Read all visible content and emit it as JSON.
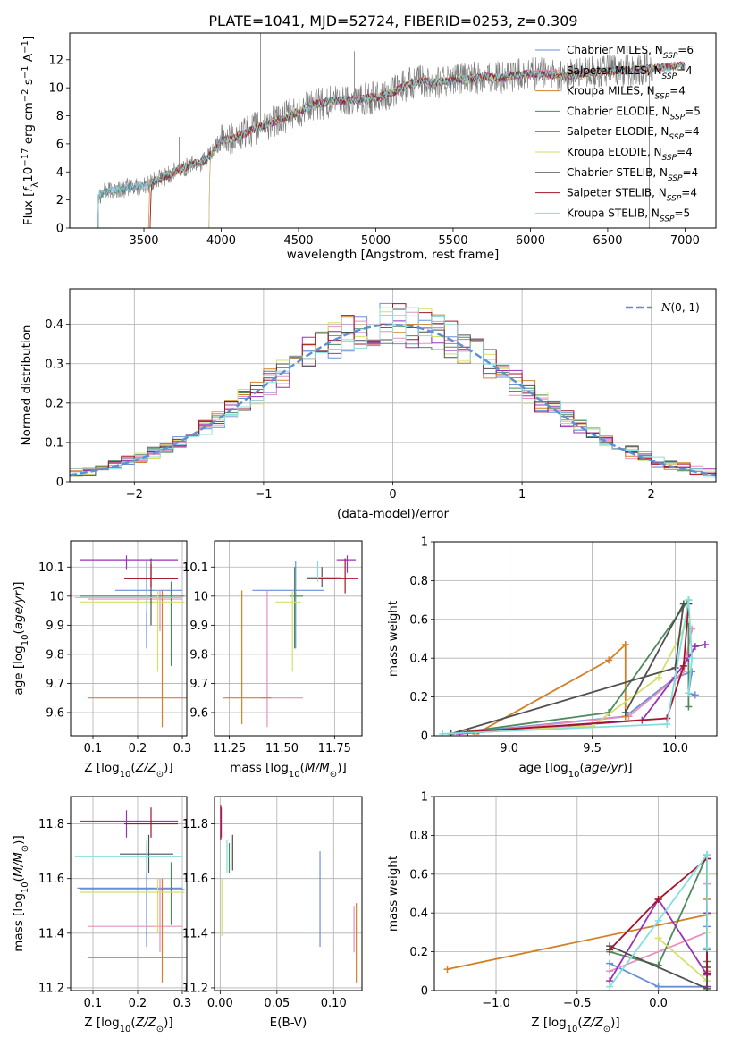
{
  "figure": {
    "title": "PLATE=1041, MJD=52724, FIBERID=0253, z=0.309"
  },
  "palette": {
    "Chabrier MILES": "#6a8fd8",
    "Salpeter MILES": "#e98fbd",
    "Kroupa MILES": "#d2812a",
    "Chabrier ELODIE": "#4e8a5e",
    "Salpeter ELODIE": "#9b32b5",
    "Kroupa ELODIE": "#d4e06a",
    "Chabrier STELIB": "#505050",
    "Salpeter STELIB": "#a5152a",
    "Kroupa STELIB": "#84dede",
    "observed": "#7a7a7a",
    "normal": "#5b8fd6"
  },
  "chart_data": [
    {
      "id": "spectrum",
      "type": "line",
      "title": "PLATE=1041, MJD=52724, FIBERID=0253, z=0.309",
      "xlabel": "wavelength [Angstrom, rest frame]",
      "ylabel": "Flux [f_λ10^-17 erg cm^-2 s^-1 A^-1]",
      "xlim": [
        3020,
        7200
      ],
      "ylim": [
        0,
        13.9
      ],
      "xticks": [
        3500,
        4000,
        4500,
        5000,
        5500,
        6000,
        6500,
        7000
      ],
      "yticks": [
        0,
        2,
        4,
        6,
        8,
        10,
        12
      ],
      "grid": false,
      "legend_position": "right",
      "legend": [
        "Chabrier MILES, N_SSP=6",
        "Salpeter MILES, N_SSP=4",
        "Kroupa MILES, N_SSP=4",
        "Chabrier ELODIE, N_SSP=5",
        "Salpeter ELODIE, N_SSP=4",
        "Kroupa ELODIE, N_SSP=4",
        "Chabrier STELIB, N_SSP=4",
        "Salpeter STELIB, N_SSP=4",
        "Kroupa STELIB, N_SSP=5"
      ],
      "legend_labels": [
        {
          "name": "Chabrier MILES",
          "n": "6"
        },
        {
          "name": "Salpeter MILES",
          "n": "4"
        },
        {
          "name": "Kroupa MILES",
          "n": "4"
        },
        {
          "name": "Chabrier ELODIE",
          "n": "5"
        },
        {
          "name": "Salpeter ELODIE",
          "n": "4"
        },
        {
          "name": "Kroupa ELODIE",
          "n": "4"
        },
        {
          "name": "Chabrier STELIB",
          "n": "4"
        },
        {
          "name": "Salpeter STELIB",
          "n": "4"
        },
        {
          "name": "Kroupa STELIB",
          "n": "5"
        }
      ],
      "continuum_x": [
        3200,
        3300,
        3400,
        3500,
        3600,
        3700,
        3800,
        3900,
        4000,
        4100,
        4200,
        4300,
        4400,
        4500,
        4600,
        4700,
        4800,
        4900,
        5000,
        5100,
        5200,
        5300,
        5400,
        5500,
        5600,
        5700,
        5800,
        5900,
        6000,
        6100,
        6200,
        6300,
        6400,
        6500,
        6600,
        6700,
        6800,
        6900,
        7000
      ],
      "continuum_y": [
        2.4,
        2.7,
        2.9,
        3.0,
        3.5,
        4.0,
        4.5,
        4.8,
        6.2,
        6.5,
        7.0,
        7.4,
        7.8,
        8.3,
        8.8,
        9.0,
        9.1,
        9.2,
        9.3,
        9.6,
        10.2,
        10.5,
        10.4,
        10.5,
        10.6,
        10.8,
        10.7,
        10.9,
        11.0,
        11.0,
        10.8,
        10.9,
        11.1,
        11.2,
        11.2,
        11.3,
        11.4,
        11.5,
        11.6
      ],
      "model_start_x": [
        3200,
        3200,
        3530,
        3200,
        3920,
        3920,
        3540,
        3540,
        3200
      ],
      "observed_end_x": 6790,
      "notable_lines_x": [
        4255,
        4862,
        3728,
        6770
      ]
    },
    {
      "id": "residuals",
      "type": "histogram",
      "xlabel": "(data-model)/error",
      "ylabel": "Normed distribution",
      "xlim": [
        -2.5,
        2.5
      ],
      "ylim": [
        0,
        0.49
      ],
      "xticks": [
        -2,
        -1,
        0,
        1,
        2
      ],
      "yticks": [
        0.0,
        0.1,
        0.2,
        0.3,
        0.4
      ],
      "grid": true,
      "legend_position": "top-right",
      "legend": [
        "N(0,1)"
      ],
      "bin_width": 0.1,
      "bin_start": -2.5
    },
    {
      "id": "age_vs_Z",
      "type": "errorbar",
      "xlabel": "Z [log10(Z/Z⊙)]",
      "ylabel": "age [log10(age/yr)]",
      "xlim": [
        0.05,
        0.31
      ],
      "ylim": [
        9.52,
        10.19
      ],
      "xticks": [
        0.1,
        0.2,
        0.3
      ],
      "yticks": [
        9.6,
        9.7,
        9.8,
        9.9,
        10.0,
        10.1
      ],
      "grid": true,
      "points": [
        {
          "series": "Chabrier MILES",
          "x": 0.22,
          "xerr": [
            0.15,
            0.3
          ],
          "y": 10.02,
          "yerr": [
            9.82,
            10.12
          ]
        },
        {
          "series": "Salpeter MILES",
          "x": 0.25,
          "xerr": [
            0.09,
            0.3
          ],
          "y": 9.99,
          "yerr": [
            9.88,
            10.02
          ]
        },
        {
          "series": "Kroupa MILES",
          "x": 0.255,
          "xerr": [
            0.09,
            0.31
          ],
          "y": 9.65,
          "yerr": [
            9.55,
            10.02
          ]
        },
        {
          "series": "Chabrier ELODIE",
          "x": 0.275,
          "xerr": [
            0.07,
            0.305
          ],
          "y": 10.0,
          "yerr": [
            9.76,
            10.05
          ]
        },
        {
          "series": "Salpeter ELODIE",
          "x": 0.175,
          "xerr": [
            0.07,
            0.29
          ],
          "y": 10.125,
          "yerr": [
            10.09,
            10.14
          ]
        },
        {
          "series": "Kroupa ELODIE",
          "x": 0.245,
          "xerr": [
            0.07,
            0.305
          ],
          "y": 9.98,
          "yerr": [
            9.74,
            10.02
          ]
        },
        {
          "series": "Chabrier STELIB",
          "x": 0.23,
          "xerr": [
            0.17,
            0.29
          ],
          "y": 10.06,
          "yerr": [
            9.9,
            10.13
          ]
        },
        {
          "series": "Salpeter STELIB",
          "x": 0.23,
          "xerr": [
            0.17,
            0.29
          ],
          "y": 10.06,
          "yerr": [
            10.03,
            10.11
          ]
        },
        {
          "series": "Kroupa STELIB",
          "x": 0.22,
          "xerr": [
            0.06,
            0.3
          ],
          "y": 9.995,
          "yerr": [
            9.95,
            10.02
          ]
        }
      ]
    },
    {
      "id": "age_vs_mass",
      "type": "errorbar",
      "xlabel": "mass [log10(M/M⊙)]",
      "ylabel": "",
      "xlim": [
        11.18,
        11.88
      ],
      "ylim": [
        9.52,
        10.19
      ],
      "xticks": [
        11.25,
        11.5,
        11.75
      ],
      "xticklabels": [
        "11.25",
        "11.50",
        "11.75"
      ],
      "yticks": [
        9.6,
        9.7,
        9.8,
        9.9,
        10.0,
        10.1
      ],
      "grid": true,
      "points": [
        {
          "series": "Chabrier MILES",
          "x": 11.565,
          "xerr": [
            11.36,
            11.7
          ],
          "y": 10.02,
          "yerr": [
            9.82,
            10.12
          ]
        },
        {
          "series": "Salpeter MILES",
          "x": 11.43,
          "xerr": [
            11.4,
            11.6
          ],
          "y": 9.65,
          "yerr": [
            9.55,
            10.02
          ]
        },
        {
          "series": "Kroupa MILES",
          "x": 11.31,
          "xerr": [
            11.22,
            11.45
          ],
          "y": 9.65,
          "yerr": [
            9.56,
            10.02
          ]
        },
        {
          "series": "Chabrier ELODIE",
          "x": 11.56,
          "xerr": [
            11.54,
            11.6
          ],
          "y": 10.0,
          "yerr": [
            9.82,
            10.1
          ]
        },
        {
          "series": "Salpeter ELODIE",
          "x": 11.81,
          "xerr": [
            11.76,
            11.85
          ],
          "y": 10.125,
          "yerr": [
            10.08,
            10.14
          ]
        },
        {
          "series": "Kroupa ELODIE",
          "x": 11.55,
          "xerr": [
            11.47,
            11.59
          ],
          "y": 9.98,
          "yerr": [
            9.74,
            10.02
          ]
        },
        {
          "series": "Chabrier STELIB",
          "x": 11.69,
          "xerr": [
            11.62,
            11.76
          ],
          "y": 10.06,
          "yerr": [
            10.03,
            10.1
          ]
        },
        {
          "series": "Salpeter STELIB",
          "x": 11.8,
          "xerr": [
            11.66,
            11.86
          ],
          "y": 10.06,
          "yerr": [
            10.01,
            10.13
          ]
        },
        {
          "series": "Kroupa STELIB",
          "x": 11.67,
          "xerr": [
            11.62,
            11.78
          ],
          "y": 10.065,
          "yerr": [
            10.05,
            10.12
          ]
        }
      ]
    },
    {
      "id": "weight_vs_age",
      "type": "line",
      "xlabel": "age [log10(age/yr)]",
      "ylabel": "mass weight",
      "xlim": [
        8.55,
        10.25
      ],
      "ylim": [
        0,
        1
      ],
      "xticks": [
        9.0,
        9.5,
        10.0
      ],
      "xticklabels": [
        "9.0",
        "9.5",
        "10.0"
      ],
      "yticks": [
        0.0,
        0.2,
        0.4,
        0.6,
        0.8,
        1.0
      ],
      "grid": true,
      "series": [
        {
          "name": "Chabrier MILES",
          "x": [
            8.65,
            9.7,
            10.0,
            10.1,
            10.08,
            10.12
          ],
          "y": [
            0.01,
            0.1,
            0.3,
            0.33,
            0.22,
            0.21
          ]
        },
        {
          "name": "Salpeter MILES",
          "x": [
            8.7,
            9.72,
            10.05,
            10.1
          ],
          "y": [
            0.01,
            0.1,
            0.33,
            0.55
          ]
        },
        {
          "name": "Kroupa MILES",
          "x": [
            8.8,
            9.6,
            9.7,
            9.7
          ],
          "y": [
            0.01,
            0.39,
            0.47,
            0.1
          ]
        },
        {
          "name": "Chabrier ELODIE",
          "x": [
            8.65,
            9.6,
            10.08,
            10.08
          ],
          "y": [
            0.01,
            0.12,
            0.7,
            0.15
          ]
        },
        {
          "name": "Salpeter ELODIE",
          "x": [
            8.7,
            9.8,
            10.08,
            10.12,
            10.18
          ],
          "y": [
            0.01,
            0.08,
            0.4,
            0.46,
            0.47
          ]
        },
        {
          "name": "Kroupa ELODIE",
          "x": [
            8.8,
            9.5,
            9.9,
            10.08
          ],
          "y": [
            0.02,
            0.05,
            0.3,
            0.6
          ]
        },
        {
          "name": "Chabrier STELIB",
          "x": [
            8.65,
            10.0,
            10.05,
            9.7
          ],
          "y": [
            0.01,
            0.35,
            0.68,
            0.12
          ]
        },
        {
          "name": "Salpeter STELIB",
          "x": [
            8.75,
            9.95,
            10.05,
            10.08
          ],
          "y": [
            0.02,
            0.09,
            0.36,
            0.68
          ]
        },
        {
          "name": "Kroupa STELIB",
          "x": [
            8.6,
            9.95,
            10.08,
            10.1,
            10.08
          ],
          "y": [
            0.01,
            0.06,
            0.7,
            0.4,
            0.22
          ]
        }
      ]
    },
    {
      "id": "mass_vs_Z",
      "type": "errorbar",
      "xlabel": "Z [log10(Z/Z⊙)]",
      "ylabel": "mass [log10(M/M⊙)]",
      "xlim": [
        0.05,
        0.31
      ],
      "ylim": [
        11.19,
        11.9
      ],
      "xticks": [
        0.1,
        0.2,
        0.3
      ],
      "yticks": [
        11.2,
        11.4,
        11.6,
        11.8
      ],
      "grid": true,
      "points": [
        {
          "series": "Chabrier MILES",
          "x": 0.22,
          "xerr": [
            0.065,
            0.3
          ],
          "y": 11.565,
          "yerr": [
            11.35,
            11.72
          ]
        },
        {
          "series": "Salpeter MILES",
          "x": 0.25,
          "xerr": [
            0.09,
            0.3
          ],
          "y": 11.425,
          "yerr": [
            11.33,
            11.6
          ]
        },
        {
          "series": "Kroupa MILES",
          "x": 0.255,
          "xerr": [
            0.09,
            0.31
          ],
          "y": 11.31,
          "yerr": [
            11.22,
            11.6
          ]
        },
        {
          "series": "Chabrier ELODIE",
          "x": 0.275,
          "xerr": [
            0.07,
            0.305
          ],
          "y": 11.56,
          "yerr": [
            11.43,
            11.66
          ]
        },
        {
          "series": "Salpeter ELODIE",
          "x": 0.175,
          "xerr": [
            0.07,
            0.29
          ],
          "y": 11.81,
          "yerr": [
            11.75,
            11.85
          ]
        },
        {
          "series": "Kroupa ELODIE",
          "x": 0.245,
          "xerr": [
            0.07,
            0.305
          ],
          "y": 11.55,
          "yerr": [
            11.4,
            11.6
          ]
        },
        {
          "series": "Chabrier STELIB",
          "x": 0.225,
          "xerr": [
            0.16,
            0.28
          ],
          "y": 11.69,
          "yerr": [
            11.62,
            11.76
          ]
        },
        {
          "series": "Salpeter STELIB",
          "x": 0.23,
          "xerr": [
            0.17,
            0.29
          ],
          "y": 11.8,
          "yerr": [
            11.75,
            11.86
          ]
        },
        {
          "series": "Kroupa STELIB",
          "x": 0.22,
          "xerr": [
            0.06,
            0.3
          ],
          "y": 11.68,
          "yerr": [
            11.62,
            11.74
          ]
        }
      ]
    },
    {
      "id": "mass_vs_ebv",
      "type": "errorbar",
      "xlabel": "E(B-V)",
      "ylabel": "",
      "xlim": [
        -0.005,
        0.125
      ],
      "ylim": [
        11.19,
        11.9
      ],
      "xticks": [
        0.0,
        0.05,
        0.1
      ],
      "xticklabels": [
        "0.00",
        "0.05",
        "0.10"
      ],
      "yticks": [
        11.2,
        11.4,
        11.6,
        11.8
      ],
      "grid": true,
      "points": [
        {
          "series": "Chabrier MILES",
          "x": 0.088,
          "y": 11.56,
          "yerr": [
            11.35,
            11.7
          ]
        },
        {
          "series": "Salpeter MILES",
          "x": 0.118,
          "y": 11.42,
          "yerr": [
            11.33,
            11.5
          ]
        },
        {
          "series": "Kroupa MILES",
          "x": 0.12,
          "y": 11.31,
          "yerr": [
            11.22,
            11.51
          ]
        },
        {
          "series": "Chabrier ELODIE",
          "x": 0.008,
          "y": 11.68,
          "yerr": [
            11.62,
            11.73
          ]
        },
        {
          "series": "Salpeter ELODIE",
          "x": 0.001,
          "y": 11.81,
          "yerr": [
            11.75,
            11.86
          ]
        },
        {
          "series": "Kroupa ELODIE",
          "x": 0.0015,
          "y": 11.5,
          "yerr": [
            11.39,
            11.6
          ]
        },
        {
          "series": "Chabrier STELIB",
          "x": 0.011,
          "y": 11.69,
          "yerr": [
            11.63,
            11.76
          ]
        },
        {
          "series": "Salpeter STELIB",
          "x": 0.0005,
          "y": 11.8,
          "yerr": [
            11.74,
            11.87
          ]
        },
        {
          "series": "Kroupa STELIB",
          "x": 0.006,
          "y": 11.68,
          "yerr": [
            11.62,
            11.74
          ]
        }
      ]
    },
    {
      "id": "weight_vs_Z",
      "type": "line",
      "xlabel": "Z [log10(Z/Z⊙)]",
      "ylabel": "mass weight",
      "xlim": [
        -1.38,
        0.36
      ],
      "ylim": [
        0,
        1
      ],
      "xticks": [
        -1.0,
        -0.5,
        0.0
      ],
      "xticklabels": [
        "−1.0",
        "−0.5",
        "0.0"
      ],
      "yticks": [
        0.0,
        0.2,
        0.4,
        0.6,
        0.8,
        1.0
      ],
      "grid": true,
      "series": [
        {
          "name": "Chabrier MILES",
          "x": [
            -0.3,
            0.0,
            0.3,
            0.3,
            0.3
          ],
          "y": [
            0.14,
            0.02,
            0.02,
            0.33,
            0.21
          ]
        },
        {
          "name": "Salpeter MILES",
          "x": [
            -0.3,
            0.3,
            0.3,
            0.3
          ],
          "y": [
            0.1,
            0.3,
            0.55,
            0.02
          ]
        },
        {
          "name": "Kroupa MILES",
          "x": [
            -1.3,
            0.3,
            0.3,
            0.3
          ],
          "y": [
            0.11,
            0.39,
            0.1,
            0.47
          ]
        },
        {
          "name": "Chabrier ELODIE",
          "x": [
            -0.3,
            0.0,
            0.3,
            0.3
          ],
          "y": [
            0.2,
            0.13,
            0.7,
            0.15
          ]
        },
        {
          "name": "Salpeter ELODIE",
          "x": [
            -0.3,
            0.0,
            0.3,
            0.3,
            0.3
          ],
          "y": [
            0.05,
            0.47,
            0.08,
            0.4,
            0.02
          ]
        },
        {
          "name": "Kroupa ELODIE",
          "x": [
            0.0,
            0.3,
            0.3,
            0.3
          ],
          "y": [
            0.27,
            0.05,
            0.6,
            0.3
          ]
        },
        {
          "name": "Chabrier STELIB",
          "x": [
            -0.3,
            0.3,
            0.3,
            0.3
          ],
          "y": [
            0.23,
            0.01,
            0.68,
            0.12
          ]
        },
        {
          "name": "Salpeter STELIB",
          "x": [
            -0.3,
            0.0,
            0.3,
            0.3
          ],
          "y": [
            0.21,
            0.47,
            0.68,
            0.09
          ]
        },
        {
          "name": "Kroupa STELIB",
          "x": [
            -0.3,
            0.0,
            0.3,
            0.3
          ],
          "y": [
            0.02,
            0.36,
            0.7,
            0.22
          ]
        }
      ]
    }
  ]
}
